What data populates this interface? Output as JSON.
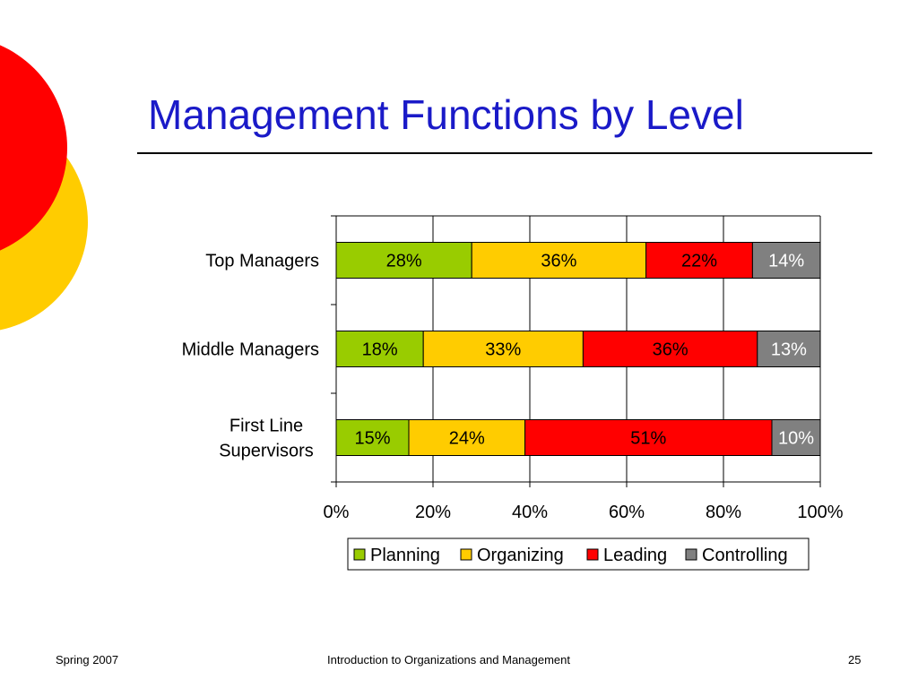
{
  "slide": {
    "title": "Management Functions by Level"
  },
  "footer": {
    "left": "Spring 2007",
    "center": "Introduction to Organizations and Management",
    "page_number": "25"
  },
  "colors": {
    "title": "#1a1ac8",
    "deco_red": "#ff0000",
    "deco_yellow": "#ffcc00"
  },
  "chart_data": {
    "type": "bar",
    "orientation": "horizontal",
    "stacked": "percent",
    "categories": [
      "Top Managers",
      "Middle Managers",
      "First Line Supervisors"
    ],
    "category_display": [
      [
        "Top Managers"
      ],
      [
        "Middle Managers"
      ],
      [
        "First Line",
        "Supervisors"
      ]
    ],
    "series": [
      {
        "name": "Planning",
        "color": "#99cc00",
        "values": [
          28,
          18,
          15
        ],
        "labels": [
          "28%",
          "18%",
          "15%"
        ]
      },
      {
        "name": "Organizing",
        "color": "#ffcc00",
        "values": [
          36,
          33,
          24
        ],
        "labels": [
          "36%",
          "33%",
          "24%"
        ]
      },
      {
        "name": "Leading",
        "color": "#ff0000",
        "values": [
          22,
          36,
          51
        ],
        "labels": [
          "22%",
          "36%",
          "51%"
        ]
      },
      {
        "name": "Controlling",
        "color": "#808080",
        "values": [
          14,
          13,
          10
        ],
        "labels": [
          "14%",
          "13%",
          "10%"
        ]
      }
    ],
    "xlim": [
      0,
      100
    ],
    "xticks": [
      0,
      20,
      40,
      60,
      80,
      100
    ],
    "xtick_labels": [
      "0%",
      "20%",
      "40%",
      "60%",
      "80%",
      "100%"
    ],
    "grid": true,
    "legend": "bottom"
  }
}
